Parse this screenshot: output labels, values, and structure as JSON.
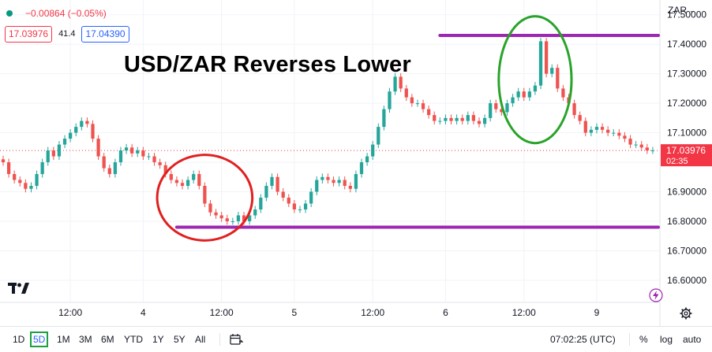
{
  "legend": {
    "change": "−0.00864 (−0.05%)",
    "bid": "17.03976",
    "spread": "41.4",
    "ask": "17.04390"
  },
  "title": "USD/ZAR Reverses Lower",
  "currency": "ZAR",
  "price_label": {
    "price": "17.03976",
    "countdown": "02:35"
  },
  "chart_data": {
    "type": "line",
    "title": "USD/ZAR Reverses Lower",
    "series": [
      {
        "values": [
          17.0,
          16.96,
          16.94,
          16.93,
          16.91,
          16.92,
          16.96,
          17.0,
          17.04,
          17.02,
          17.06,
          17.08,
          17.1,
          17.12,
          17.14,
          17.13,
          17.08,
          17.02,
          16.98,
          16.96,
          17.0,
          17.04,
          17.05,
          17.03,
          17.04,
          17.02,
          17.02,
          17.0,
          16.99,
          16.96,
          16.94,
          16.93,
          16.92,
          16.94,
          16.96,
          16.92,
          16.86,
          16.83,
          16.82,
          16.81,
          16.8,
          16.8,
          16.82,
          16.8,
          16.82,
          16.84,
          16.88,
          16.92,
          16.95,
          16.9,
          16.88,
          16.86,
          16.84,
          16.84,
          16.86,
          16.9,
          16.94,
          16.95,
          16.94,
          16.93,
          16.94,
          16.92,
          16.91,
          16.96,
          17.0,
          17.02,
          17.06,
          17.12,
          17.18,
          17.24,
          17.29,
          17.25,
          17.22,
          17.2,
          17.2,
          17.18,
          17.16,
          17.14,
          17.14,
          17.15,
          17.14,
          17.15,
          17.14,
          17.16,
          17.14,
          17.13,
          17.15,
          17.2,
          17.18,
          17.17,
          17.2,
          17.22,
          17.24,
          17.22,
          17.24,
          17.26,
          17.41,
          17.3,
          17.32,
          17.25,
          17.22,
          17.2,
          17.16,
          17.14,
          17.1,
          17.11,
          17.12,
          17.11,
          17.1,
          17.1,
          17.09,
          17.08,
          17.06,
          17.06,
          17.05,
          17.04,
          17.04
        ]
      }
    ],
    "x_tick_labels": [
      "12:00",
      "4",
      "12:00",
      "5",
      "12:00",
      "6",
      "12:00",
      "9"
    ],
    "x_tick_index": [
      12,
      25,
      39,
      52,
      66,
      79,
      93,
      106
    ],
    "y_ticks": [
      16.6,
      16.7,
      16.8,
      16.9,
      17.0,
      17.1,
      17.2,
      17.3,
      17.4,
      17.5
    ],
    "y_tick_labels": [
      "16.60000",
      "16.70000",
      "16.80000",
      "16.90000",
      "17.00000",
      "17.10000",
      "17.20000",
      "17.30000",
      "17.40000",
      "17.50000"
    ],
    "ylim": [
      16.525,
      17.55
    ],
    "current_price": 17.03976,
    "levels": [
      {
        "value": 17.43,
        "start_index": 78,
        "color": "#9c27b0"
      },
      {
        "value": 16.78,
        "start_index": 31,
        "color": "#9c27b0"
      }
    ],
    "highlights": [
      {
        "center_index": 36,
        "center_value": 16.88,
        "width_points": 17,
        "value_span": 0.29,
        "color": "#e02020"
      },
      {
        "center_index": 95,
        "center_value": 17.28,
        "width_points": 13,
        "value_span": 0.43,
        "color": "#2aa32a"
      }
    ],
    "up_color": "#26a69a",
    "down_color": "#ef5350",
    "grid": true
  },
  "ranges": [
    "1D",
    "5D",
    "1M",
    "3M",
    "6M",
    "YTD",
    "1Y",
    "5Y",
    "All"
  ],
  "active_range": "5D",
  "clock": "07:02:25 (UTC)",
  "scale_options": {
    "percent": "%",
    "log": "log",
    "auto": "auto"
  },
  "icons": [
    "tradingview-logo-icon",
    "calendar-range-icon",
    "gear-icon",
    "lightning-icon",
    "chevron-down-icon"
  ]
}
